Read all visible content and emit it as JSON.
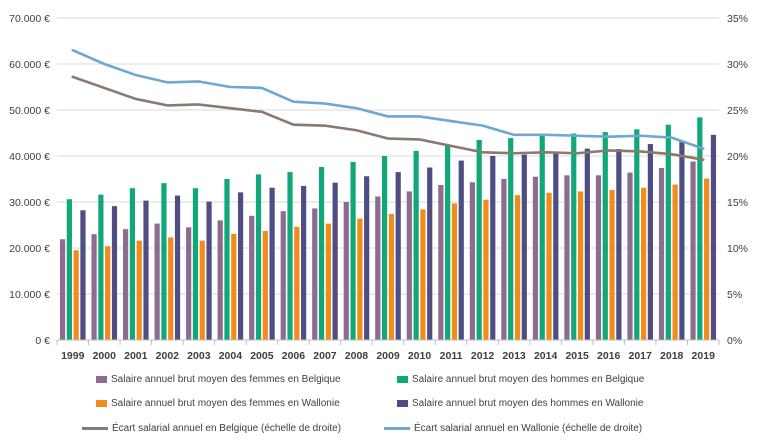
{
  "chart_data": {
    "type": "bar",
    "categories": [
      "1999",
      "2000",
      "2001",
      "2002",
      "2003",
      "2004",
      "2005",
      "2006",
      "2007",
      "2008",
      "2009",
      "2010",
      "2011",
      "2012",
      "2013",
      "2014",
      "2015",
      "2016",
      "2017",
      "2018",
      "2019"
    ],
    "y_left": {
      "ticks": [
        "0 €",
        "10.000 €",
        "20.000 €",
        "30.000 €",
        "40.000 €",
        "50.000 €",
        "60.000 €",
        "70.000 €"
      ],
      "ylim": [
        0,
        70000
      ]
    },
    "y_right": {
      "ticks": [
        "0%",
        "5%",
        "10%",
        "15%",
        "20%",
        "25%",
        "30%",
        "35%"
      ],
      "ylim": [
        0,
        35
      ]
    },
    "grid": true,
    "legend_position": "bottom",
    "series": [
      {
        "name": "Salaire annuel brut moyen des femmes en Belgique",
        "type": "bar",
        "axis": "left",
        "color": "#8e6b91",
        "values": [
          21900,
          23000,
          24100,
          25300,
          24500,
          26000,
          27000,
          28000,
          28600,
          30000,
          31200,
          32300,
          33700,
          34300,
          35000,
          35500,
          35800,
          35800,
          36400,
          37400,
          38800
        ]
      },
      {
        "name": "Salaire annuel brut moyen des hommes en Belgique",
        "type": "bar",
        "axis": "left",
        "color": "#10a779",
        "values": [
          30600,
          31600,
          33000,
          34100,
          33000,
          35000,
          36000,
          36500,
          37600,
          38700,
          40000,
          41100,
          42300,
          43500,
          43900,
          44500,
          44900,
          45200,
          45800,
          46800,
          48400
        ]
      },
      {
        "name": "Salaire annuel brut moyen des femmes en Wallonie",
        "type": "bar",
        "axis": "left",
        "color": "#f08c1c",
        "values": [
          19500,
          20400,
          21600,
          22300,
          21600,
          23100,
          23700,
          24600,
          25300,
          26400,
          27400,
          28400,
          29700,
          30500,
          31500,
          32000,
          32300,
          32600,
          33100,
          33800,
          35100
        ]
      },
      {
        "name": "Salaire annuel brut moyen des hommes en Wallonie",
        "type": "bar",
        "axis": "left",
        "color": "#4e4e84",
        "values": [
          28200,
          29100,
          30300,
          31400,
          30100,
          32100,
          33100,
          33500,
          34200,
          35600,
          36500,
          37500,
          39000,
          40000,
          40300,
          40800,
          41600,
          41500,
          42600,
          43300,
          44600
        ]
      },
      {
        "name": "Écart salarial annuel en Belgique (échelle de droite)",
        "type": "line",
        "axis": "right",
        "color": "#8a7a6e",
        "values": [
          28.6,
          27.4,
          26.2,
          25.5,
          25.6,
          25.2,
          24.8,
          23.4,
          23.3,
          22.8,
          21.9,
          21.8,
          21.1,
          20.4,
          20.3,
          20.4,
          20.3,
          20.6,
          20.5,
          20.2,
          19.6
        ]
      },
      {
        "name": "Écart salarial annuel en Wallonie (échelle de droite)",
        "type": "line",
        "axis": "right",
        "color": "#6fa8cf",
        "values": [
          31.5,
          30.0,
          28.8,
          28.0,
          28.1,
          27.5,
          27.4,
          25.9,
          25.7,
          25.2,
          24.3,
          24.3,
          23.8,
          23.3,
          22.3,
          22.3,
          22.2,
          22.1,
          22.2,
          22.0,
          20.8
        ]
      }
    ]
  }
}
